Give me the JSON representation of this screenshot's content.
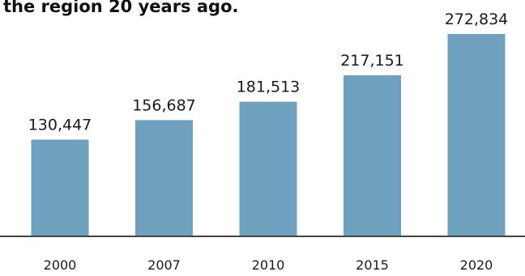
{
  "chart_data": {
    "type": "bar",
    "title": "the region 20 years ago.",
    "categories": [
      "2000",
      "2007",
      "2010",
      "2015",
      "2020"
    ],
    "values": [
      130447,
      156687,
      181513,
      217151,
      272834
    ],
    "value_labels": [
      "130,447",
      "156,687",
      "181,513",
      "217,151",
      "272,834"
    ],
    "xlabel": "",
    "ylabel": "",
    "ylim": [
      0,
      280000
    ],
    "grid": false,
    "legend": "none",
    "bar_color": "#6fa1bf"
  }
}
